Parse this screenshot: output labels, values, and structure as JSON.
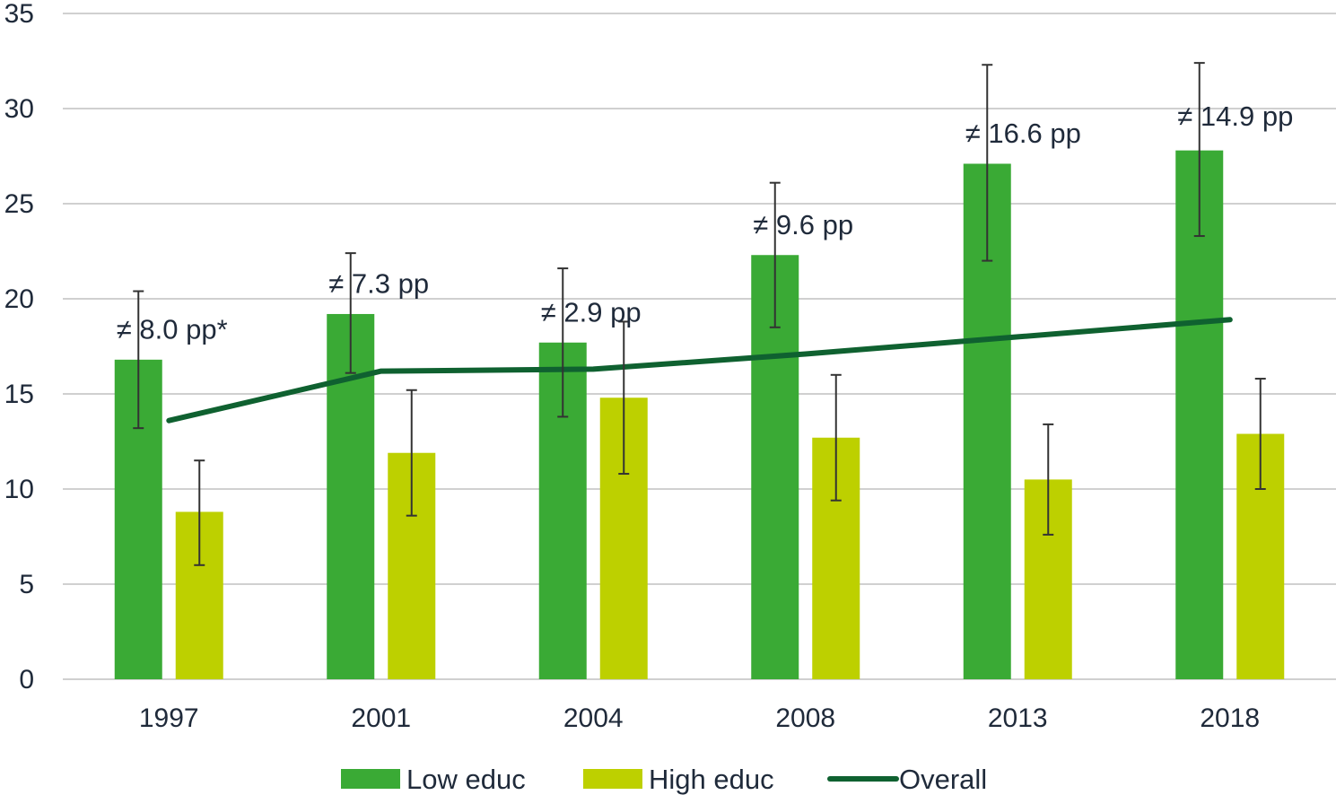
{
  "chart_data": {
    "type": "bar",
    "categories": [
      "1997",
      "2001",
      "2004",
      "2008",
      "2013",
      "2018"
    ],
    "ylim": [
      0,
      35
    ],
    "yticks": [
      0,
      5,
      10,
      15,
      20,
      25,
      30,
      35
    ],
    "grid": true,
    "legend_position": "bottom",
    "series": [
      {
        "name": "Low educ",
        "kind": "bar",
        "color": "#3aaa35",
        "values": [
          16.8,
          19.2,
          17.7,
          22.3,
          27.1,
          27.8
        ],
        "error_low": [
          13.2,
          16.1,
          13.8,
          18.5,
          22.0,
          23.3
        ],
        "error_high": [
          20.4,
          22.4,
          21.6,
          26.1,
          32.3,
          32.4
        ]
      },
      {
        "name": "High educ",
        "kind": "bar",
        "color": "#bdd000",
        "values": [
          8.8,
          11.9,
          14.8,
          12.7,
          10.5,
          12.9
        ],
        "error_low": [
          6.0,
          8.6,
          10.8,
          9.4,
          7.6,
          10.0
        ],
        "error_high": [
          11.5,
          15.2,
          18.8,
          16.0,
          13.4,
          15.8
        ]
      },
      {
        "name": "Overall",
        "kind": "line",
        "color": "#0f6130",
        "values": [
          13.6,
          16.2,
          16.3,
          17.1,
          18.0,
          18.9
        ]
      }
    ],
    "annotations": [
      {
        "category": "1997",
        "text": "≠ 8.0 pp*",
        "y": 17.9
      },
      {
        "category": "2001",
        "text": "≠ 7.3 pp",
        "y": 20.3
      },
      {
        "category": "2004",
        "text": "≠ 2.9 pp",
        "y": 18.8
      },
      {
        "category": "2008",
        "text": "≠ 9.6 pp",
        "y": 23.4
      },
      {
        "category": "2013",
        "text": "≠ 16.6 pp",
        "y": 28.2
      },
      {
        "category": "2018",
        "text": "≠ 14.9 pp",
        "y": 29.1
      }
    ]
  }
}
